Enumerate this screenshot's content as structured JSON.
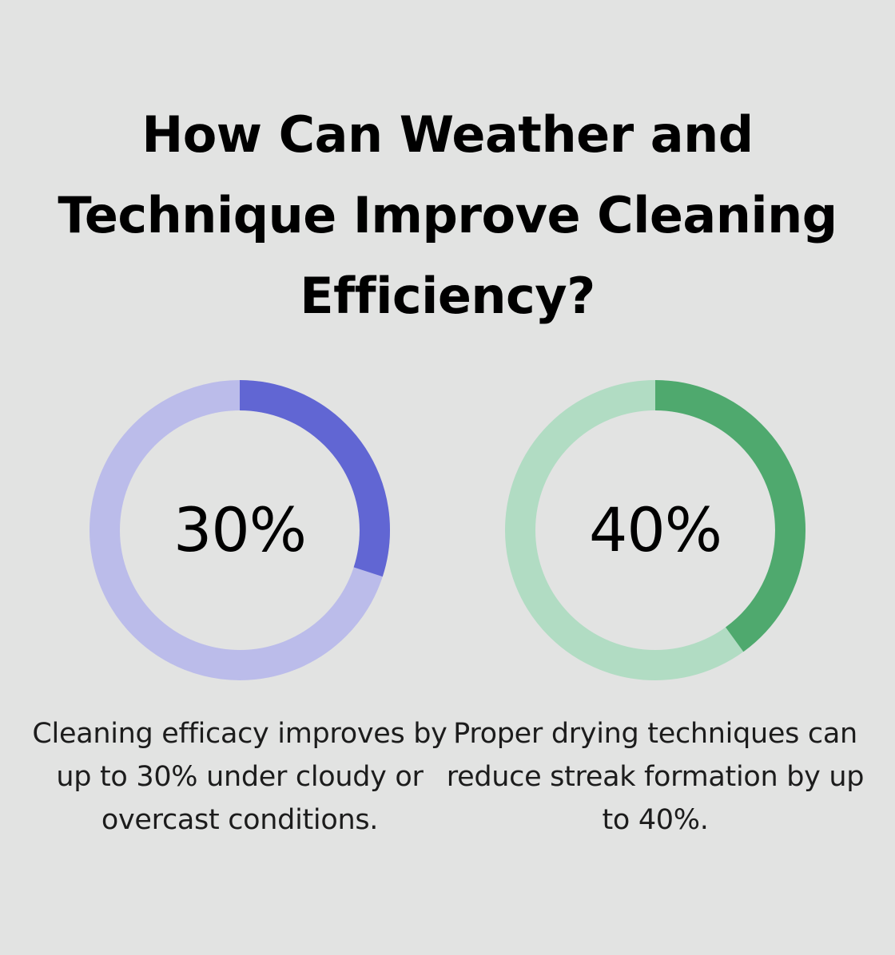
{
  "title": "How Can Weather and Technique Improve Cleaning Efficiency?",
  "colors": {
    "background": "#e2e3e2",
    "blue_fill": "#6166d3",
    "blue_track": "#bbbcea",
    "green_fill": "#4fa96e",
    "green_track": "#b1dcc3"
  },
  "chart_data": [
    {
      "type": "pie",
      "variant": "donut",
      "value_label": "30%",
      "value": 30,
      "max": 100,
      "caption": "Cleaning efficacy improves by up to 30% under cloudy or overcast conditions.",
      "fill_color": "#6166d3",
      "track_color": "#bbbcea"
    },
    {
      "type": "pie",
      "variant": "donut",
      "value_label": "40%",
      "value": 40,
      "max": 100,
      "caption": "Proper drying techniques can reduce streak formation by up to 40%.",
      "fill_color": "#4fa96e",
      "track_color": "#b1dcc3"
    }
  ]
}
